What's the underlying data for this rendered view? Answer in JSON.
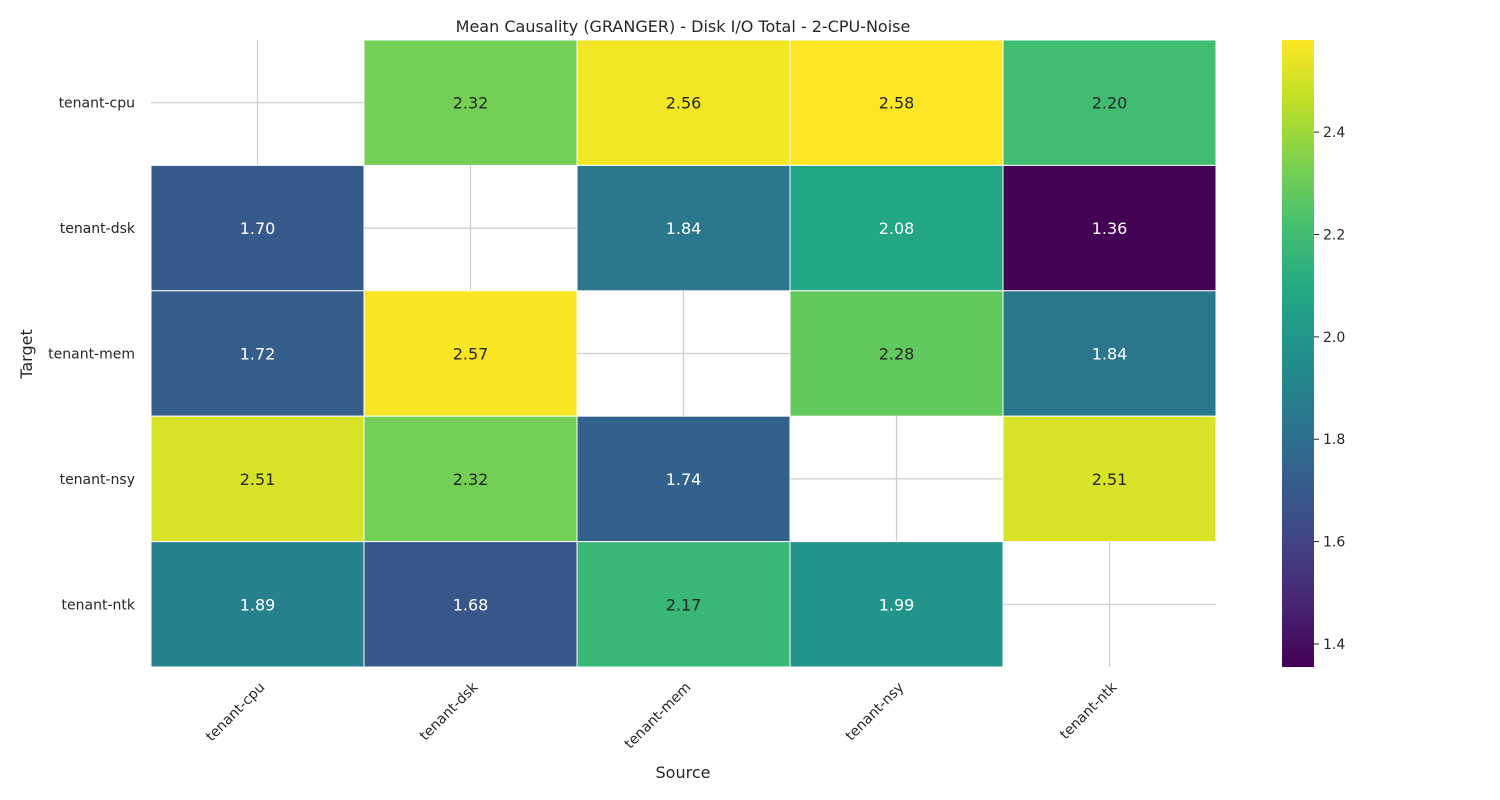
{
  "chart_data": {
    "type": "heatmap",
    "title": "Mean Causality (GRANGER) - Disk I/O Total - 2-CPU-Noise",
    "xlabel": "Source",
    "ylabel": "Target",
    "x_categories": [
      "tenant-cpu",
      "tenant-dsk",
      "tenant-mem",
      "tenant-nsy",
      "tenant-ntk"
    ],
    "y_categories": [
      "tenant-cpu",
      "tenant-dsk",
      "tenant-mem",
      "tenant-nsy",
      "tenant-ntk"
    ],
    "values": [
      [
        null,
        2.32,
        2.56,
        2.58,
        2.2
      ],
      [
        1.7,
        null,
        1.84,
        2.08,
        1.36
      ],
      [
        1.72,
        2.57,
        null,
        2.28,
        1.84
      ],
      [
        2.51,
        2.32,
        1.74,
        null,
        2.51
      ],
      [
        1.89,
        1.68,
        2.17,
        1.99,
        null
      ]
    ],
    "value_format": "0.00",
    "colormap": "viridis",
    "color_range": [
      1.355,
      2.58
    ],
    "colorbar_ticks": [
      "1.4",
      "1.6",
      "1.8",
      "2.0",
      "2.2",
      "2.4"
    ],
    "grid": true,
    "colors": {
      "grid": "#cccccc",
      "text_dark": "#262626",
      "text_light": "#ffffff"
    }
  }
}
